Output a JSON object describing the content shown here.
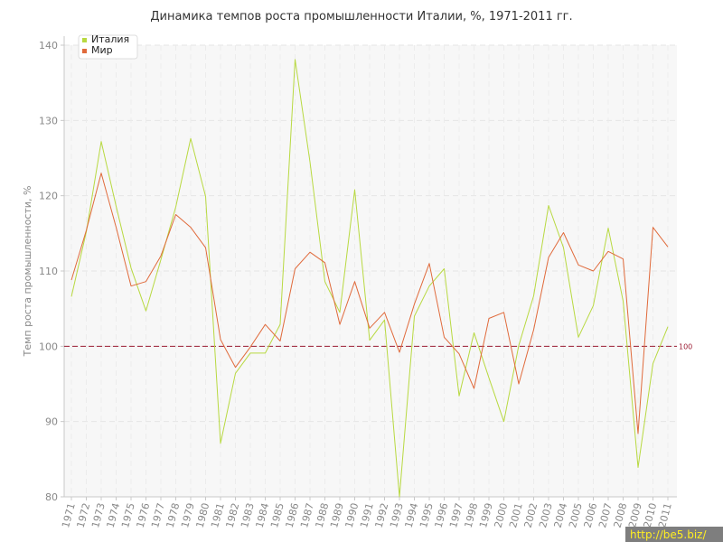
{
  "chart_data": {
    "type": "line",
    "title": "Динамика темпов роста промышленности Италии, %, 1971-2011 гг.",
    "xlabel": "",
    "ylabel": "Темп роста промышленности, %",
    "ylim": [
      80,
      140
    ],
    "yticks": [
      80,
      90,
      100,
      110,
      120,
      130,
      140
    ],
    "grid": true,
    "legend_position": "top-left",
    "x": [
      "1971",
      "1972",
      "1973",
      "1974",
      "1975",
      "1976",
      "1977",
      "1978",
      "1979",
      "1980",
      "1981",
      "1982",
      "1983",
      "1984",
      "1985",
      "1986",
      "1987",
      "1988",
      "1989",
      "1990",
      "1991",
      "1992",
      "1993",
      "1994",
      "1995",
      "1996",
      "1997",
      "1998",
      "1999",
      "2000",
      "2001",
      "2002",
      "2003",
      "2004",
      "2005",
      "2006",
      "2007",
      "2008",
      "2009",
      "2010",
      "2011"
    ],
    "series": [
      {
        "name": "Италия",
        "color": "#b8d941",
        "values": [
          106.6,
          115.2,
          127.2,
          118.6,
          110.4,
          104.7,
          111.5,
          118.5,
          127.6,
          119.9,
          87.1,
          96.4,
          99.1,
          99.1,
          102.9,
          138.1,
          124.5,
          108.6,
          104.5,
          120.8,
          100.8,
          103.5,
          80.0,
          104.0,
          108.0,
          110.3,
          93.4,
          101.8,
          95.8,
          90.0,
          100.1,
          106.7,
          118.7,
          113.1,
          101.2,
          105.4,
          115.7,
          106.0,
          83.9,
          97.7,
          102.6
        ]
      },
      {
        "name": "Мир",
        "color": "#e06a3b",
        "values": [
          108.8,
          115.4,
          123.0,
          115.8,
          108.0,
          108.6,
          112.0,
          117.5,
          115.8,
          113.1,
          100.9,
          97.2,
          99.9,
          102.9,
          100.7,
          110.3,
          112.5,
          111.1,
          102.9,
          108.6,
          102.4,
          104.5,
          99.2,
          105.6,
          111.0,
          101.2,
          99.0,
          94.4,
          103.7,
          104.5,
          95.0,
          102.2,
          111.8,
          115.1,
          110.8,
          110.0,
          112.6,
          111.6,
          88.4,
          115.8,
          113.2
        ]
      }
    ],
    "reference_line": {
      "value": 100,
      "label": "100",
      "color": "#9b1c33"
    }
  },
  "watermark": "http://be5.biz/"
}
